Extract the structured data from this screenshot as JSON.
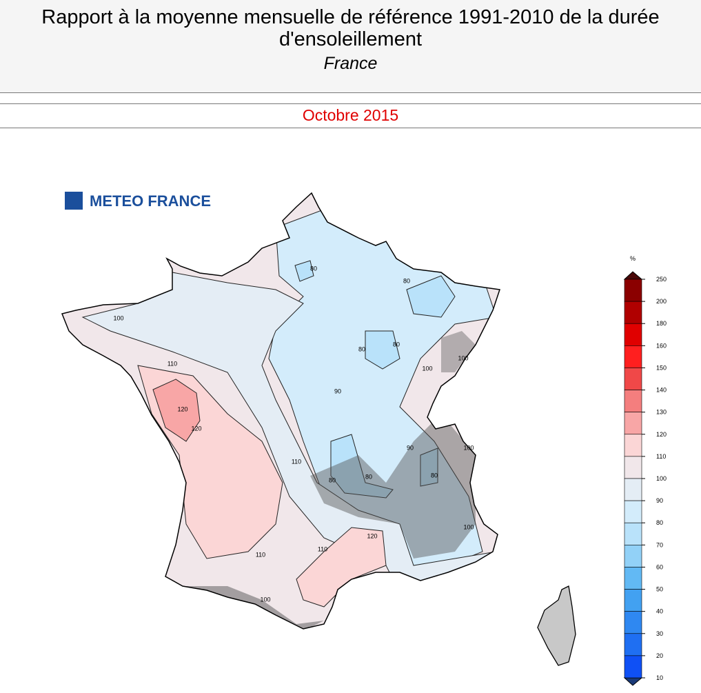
{
  "header": {
    "title": "Rapport à la moyenne mensuelle de référence 1991-2010 de la durée d'ensoleillement",
    "region": "France",
    "period": "Octobre 2015"
  },
  "logo": {
    "text": "METEO FRANCE"
  },
  "map": {
    "contour_labels": [
      "100",
      "110",
      "120",
      "120",
      "110",
      "100",
      "80",
      "80",
      "80",
      "80",
      "90",
      "100",
      "100",
      "90",
      "80",
      "80",
      "80",
      "100",
      "110",
      "120",
      "110",
      "100"
    ]
  },
  "legend": {
    "unit": "%",
    "ticks": [
      250,
      200,
      180,
      160,
      150,
      140,
      130,
      120,
      110,
      100,
      90,
      80,
      70,
      60,
      50,
      40,
      30,
      20,
      10
    ],
    "colors": [
      "#8b0000",
      "#b00000",
      "#e00000",
      "#ff1f1f",
      "#f04848",
      "#f47e7e",
      "#f8a6a6",
      "#fbd6d6",
      "#f1e7ea",
      "#e4edf5",
      "#d3ecfb",
      "#b9e2fa",
      "#92d1f7",
      "#62b9f4",
      "#42a1f1",
      "#2f88f1",
      "#1f6ff2",
      "#0f50f5"
    ],
    "over_color": "#4a0808",
    "under_color": "#1a3a78"
  }
}
